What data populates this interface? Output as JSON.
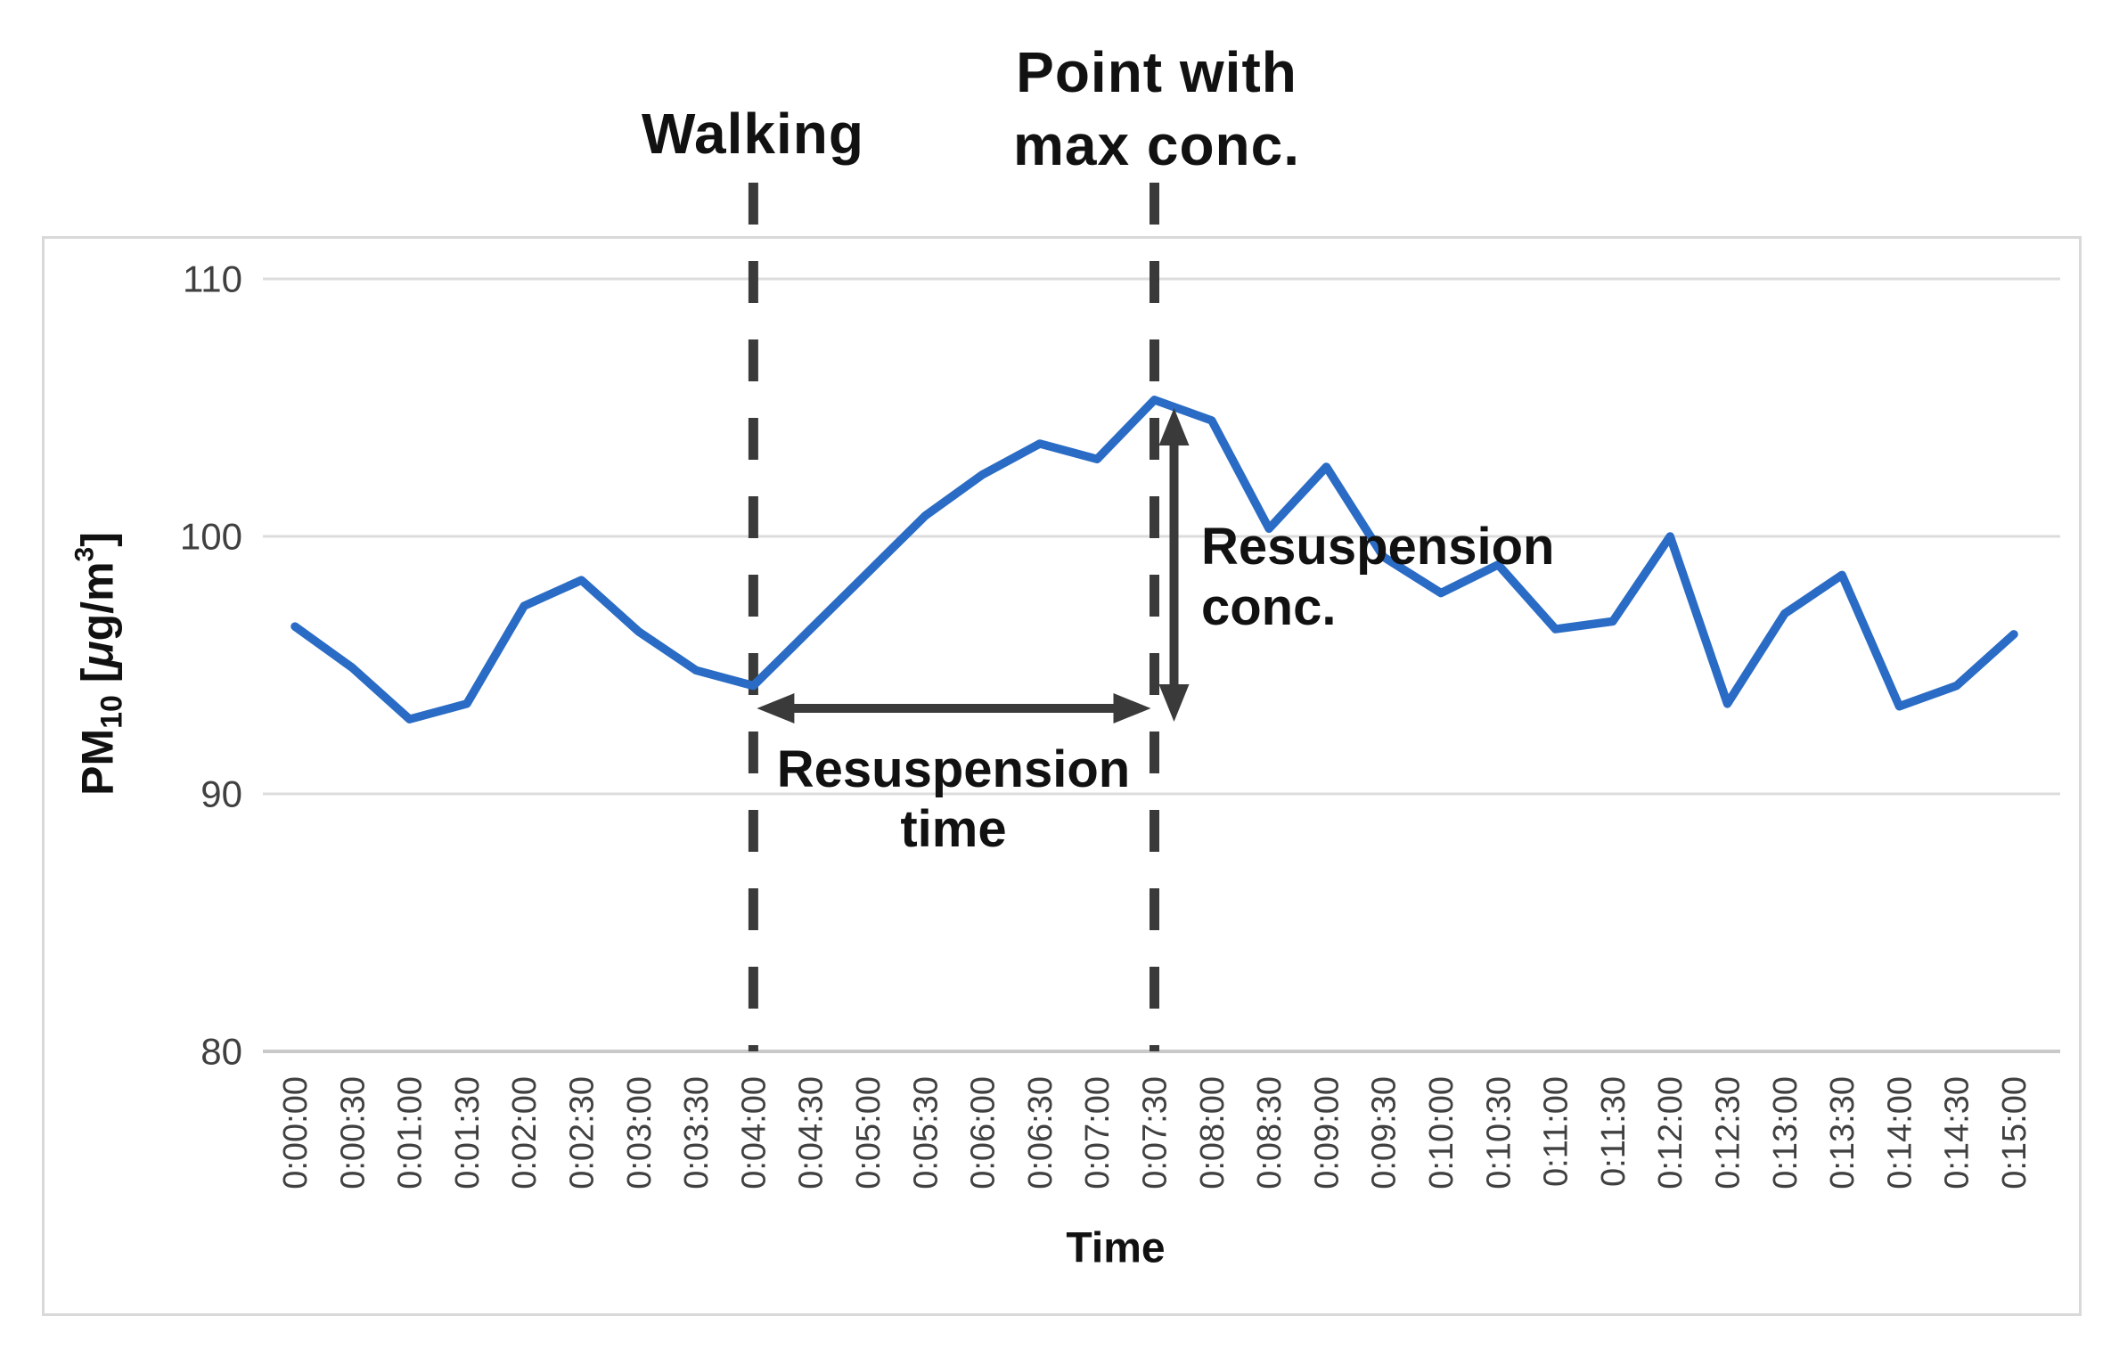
{
  "chart_data": {
    "type": "line",
    "title": "",
    "xlabel": "Time",
    "ylabel": "PM10 [μg/m3]",
    "ylim": [
      80,
      110
    ],
    "grid": "horizontal-only",
    "legend": "none",
    "line_color": "#2a6cc5",
    "x": [
      "0:00:00",
      "0:00:30",
      "0:01:00",
      "0:01:30",
      "0:02:00",
      "0:02:30",
      "0:03:00",
      "0:03:30",
      "0:04:00",
      "0:04:30",
      "0:05:00",
      "0:05:30",
      "0:06:00",
      "0:06:30",
      "0:07:00",
      "0:07:30",
      "0:08:00",
      "0:08:30",
      "0:09:00",
      "0:09:30",
      "0:10:00",
      "0:10:30",
      "0:11:00",
      "0:11:30",
      "0:12:00",
      "0:12:30",
      "0:13:00",
      "0:13:30",
      "0:14:00",
      "0:14:30",
      "0:15:00"
    ],
    "series": [
      {
        "name": "PM10",
        "values": [
          96.5,
          94.9,
          92.9,
          93.5,
          97.3,
          98.3,
          96.3,
          94.8,
          94.2,
          96.4,
          98.6,
          100.8,
          102.4,
          103.6,
          103.0,
          105.3,
          104.5,
          100.3,
          102.7,
          99.2,
          97.8,
          98.9,
          96.4,
          96.7,
          100.0,
          93.5,
          97.0,
          98.5,
          93.4,
          94.2,
          96.2
        ]
      }
    ],
    "y_ticks": [
      110,
      100,
      90,
      80
    ],
    "annotations": {
      "walking_line_at": "0:04:00",
      "max_conc_line_at": "0:07:30",
      "resuspension_time_span": [
        "0:04:00",
        "0:07:30"
      ],
      "resuspension_conc_span": [
        94.0,
        105.3
      ]
    }
  },
  "labels": {
    "walking": "Walking",
    "point_max_line1": "Point with",
    "point_max_line2": "max conc.",
    "resusp_time_line1": "Resuspension",
    "resusp_time_line2": "time",
    "resusp_conc_line1": "Resuspension",
    "resusp_conc_line2": "conc.",
    "x_title": "Time"
  },
  "y_axis_title_parts": {
    "base": "PM",
    "sub": "10",
    "open": " [",
    "mu": "μ",
    "unit": "g/m",
    "sup": "3",
    "close": "]"
  },
  "colors": {
    "line": "#2a6cc5",
    "annotation_ink": "#3a3a3a",
    "text": "#111111",
    "tick_text": "#404040",
    "gridline": "#dcdcdc",
    "axis_line": "#c9c9c9",
    "figure_border": "#d9d9d9",
    "background": "#ffffff"
  }
}
